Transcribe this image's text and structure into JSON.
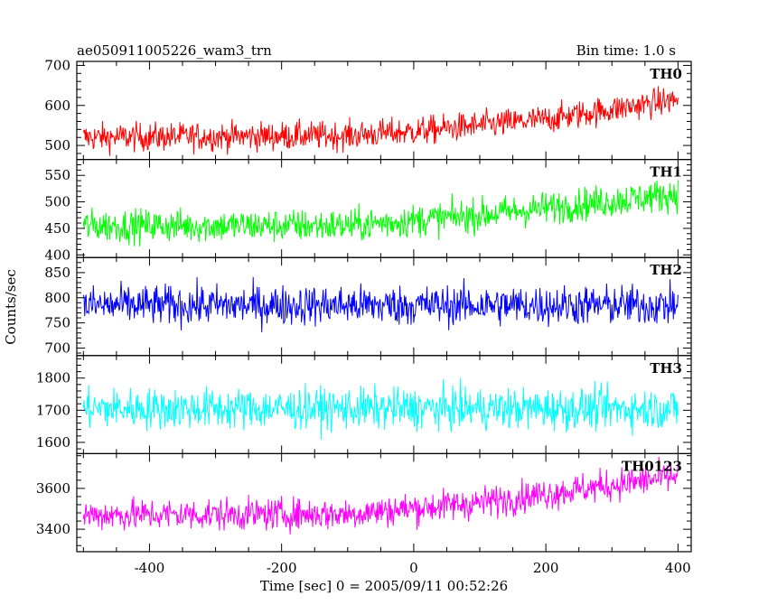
{
  "header": {
    "left_title": "ae050911005226_wam3_trn",
    "right_title": "Bin time: 1.0 s"
  },
  "axes": {
    "xlabel": "Time [sec] 0 = 2005/09/11 00:52:26",
    "ylabel": "Counts/sec"
  },
  "chart_data": {
    "type": "line",
    "title": "ae050911005226_wam3_trn",
    "subtitle": "Bin time: 1.0 s",
    "xlabel": "Time [sec] 0 = 2005/09/11 00:52:26",
    "ylabel": "Counts/sec",
    "xlim": [
      -510,
      420
    ],
    "x_start": -500,
    "x_end": 400,
    "x_step": 1,
    "xticks": [
      -400,
      -200,
      0,
      200,
      400
    ],
    "grid": false,
    "panels": [
      {
        "name": "TH0",
        "color": "#ff0000",
        "ylim": [
          465,
          710
        ],
        "yticks": [
          500,
          600,
          700
        ],
        "baseline": [
          [
            -500,
            520
          ],
          [
            -100,
            525
          ],
          [
            0,
            535
          ],
          [
            200,
            565
          ],
          [
            400,
            615
          ]
        ],
        "noise": 25
      },
      {
        "name": "TH1",
        "color": "#00ff00",
        "ylim": [
          395,
          580
        ],
        "yticks": [
          400,
          450,
          500,
          550
        ],
        "baseline": [
          [
            -500,
            455
          ],
          [
            -100,
            455
          ],
          [
            100,
            475
          ],
          [
            400,
            515
          ]
        ],
        "noise": 22
      },
      {
        "name": "TH2",
        "color": "#0000ff",
        "ylim": [
          685,
          880
        ],
        "yticks": [
          700,
          750,
          800,
          850
        ],
        "baseline": [
          [
            -500,
            785
          ],
          [
            400,
            785
          ]
        ],
        "noise": 28
      },
      {
        "name": "TH3",
        "color": "#00ffff",
        "ylim": [
          1565,
          1870
        ],
        "yticks": [
          1600,
          1700,
          1800
        ],
        "baseline": [
          [
            -500,
            1705
          ],
          [
            400,
            1705
          ]
        ],
        "noise": 45
      },
      {
        "name": "TH0123",
        "color": "#ff00ff",
        "ylim": [
          3290,
          3770
        ],
        "yticks": [
          3400,
          3600
        ],
        "baseline": [
          [
            -500,
            3470
          ],
          [
            -100,
            3475
          ],
          [
            100,
            3530
          ],
          [
            400,
            3660
          ]
        ],
        "noise": 55
      }
    ]
  }
}
